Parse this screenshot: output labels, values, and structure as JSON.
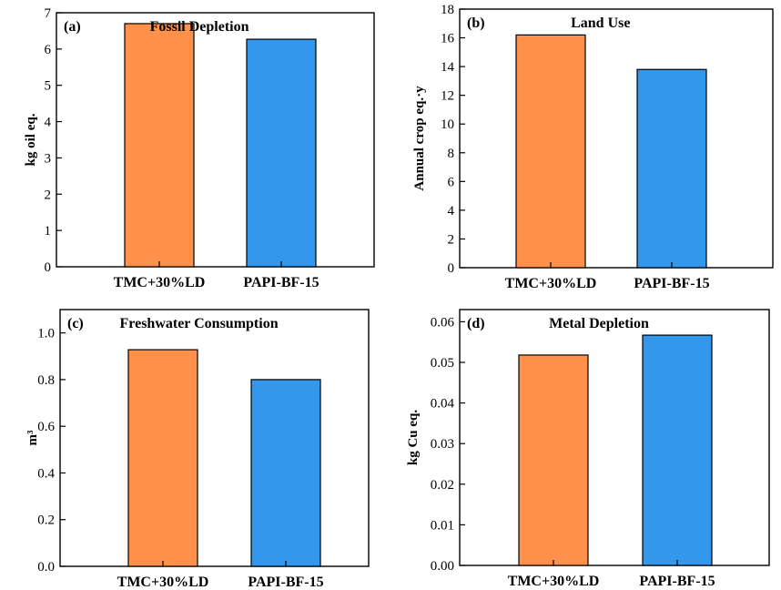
{
  "colors": {
    "orange": "#FF914D",
    "blue": "#3397EC"
  },
  "chart_data": [
    {
      "type": "bar",
      "panel": "(a)",
      "title": "Fossil Depletion",
      "ylabel": "kg oil eq.",
      "categories": [
        "TMC+30%LD",
        "PAPI-BF-15"
      ],
      "values": [
        6.7,
        6.27
      ],
      "ylim": [
        0,
        7
      ],
      "yticks": [
        0,
        1,
        2,
        3,
        4,
        5,
        6,
        7
      ],
      "ytick_labels": [
        "0",
        "1",
        "2",
        "3",
        "4",
        "5",
        "6",
        "7"
      ]
    },
    {
      "type": "bar",
      "panel": "(b)",
      "title": "Land Use",
      "ylabel": "Annual crop eq.·y",
      "categories": [
        "TMC+30%LD",
        "PAPI-BF-15"
      ],
      "values": [
        16.2,
        13.8
      ],
      "ylim": [
        0,
        18
      ],
      "yticks": [
        0,
        2,
        4,
        6,
        8,
        10,
        12,
        14,
        16,
        18
      ],
      "ytick_labels": [
        "0",
        "2",
        "4",
        "6",
        "8",
        "10",
        "12",
        "14",
        "16",
        "18"
      ]
    },
    {
      "type": "bar",
      "panel": "(c)",
      "title": "Freshwater Consumption",
      "ylabel": "m³",
      "categories": [
        "TMC+30%LD",
        "PAPI-BF-15"
      ],
      "values": [
        0.928,
        0.8
      ],
      "ylim": [
        0,
        1.1
      ],
      "yticks": [
        0,
        0.2,
        0.4,
        0.6,
        0.8,
        1.0
      ],
      "ytick_labels": [
        "0.0",
        "0.2",
        "0.4",
        "0.6",
        "0.8",
        "1.0"
      ]
    },
    {
      "type": "bar",
      "panel": "(d)",
      "title": "Metal Depletion",
      "ylabel": "kg Cu eq.",
      "categories": [
        "TMC+30%LD",
        "PAPI-BF-15"
      ],
      "values": [
        0.0518,
        0.0567
      ],
      "ylim": [
        0,
        0.063
      ],
      "yticks": [
        0,
        0.01,
        0.02,
        0.03,
        0.04,
        0.05,
        0.06
      ],
      "ytick_labels": [
        "0.00",
        "0.01",
        "0.02",
        "0.03",
        "0.04",
        "0.05",
        "0.06"
      ]
    }
  ]
}
